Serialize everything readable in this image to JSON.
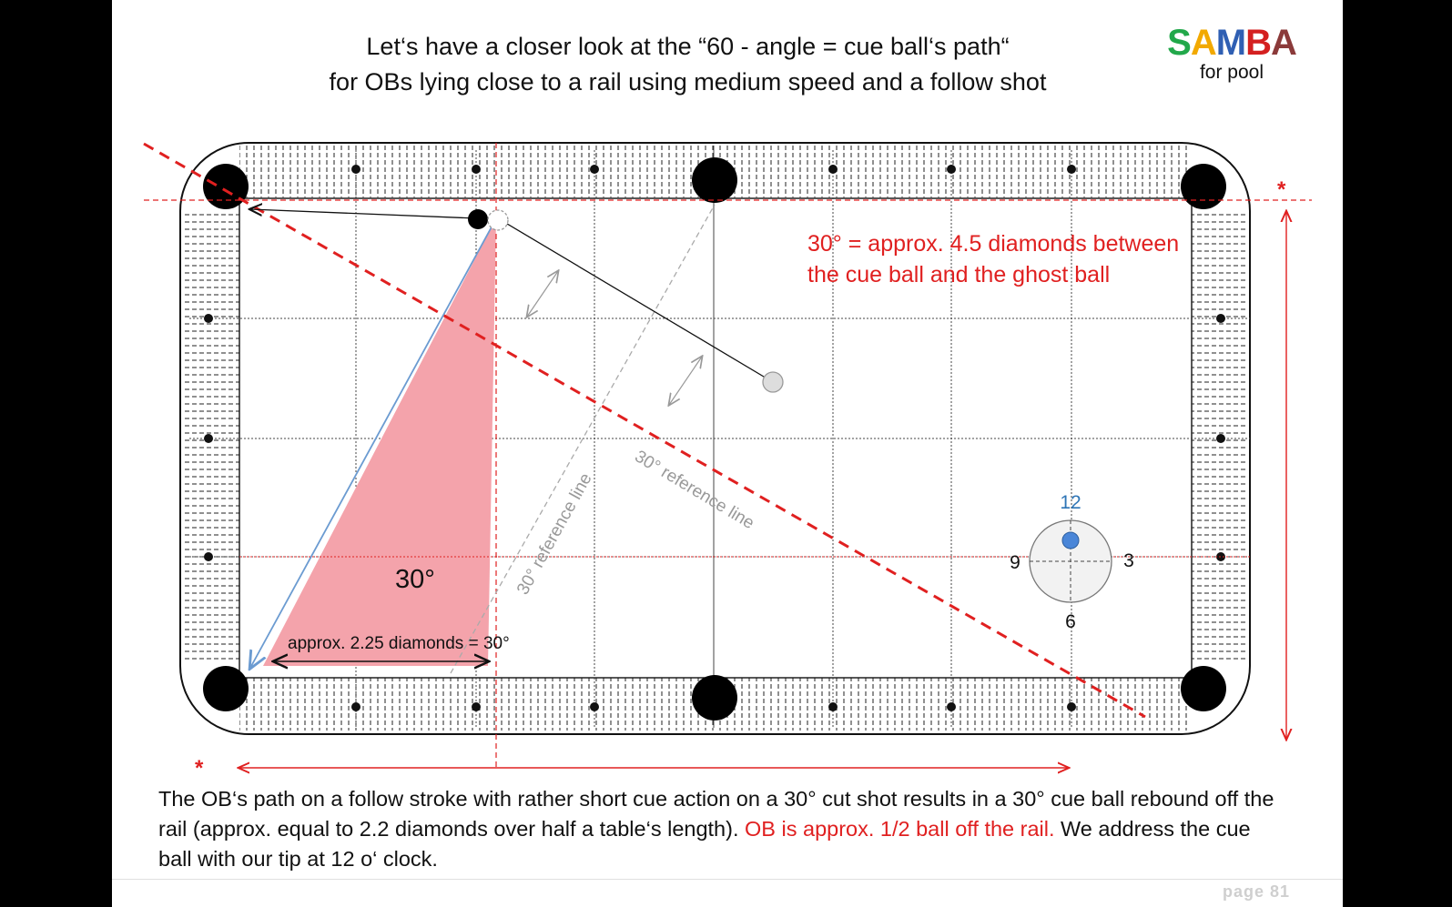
{
  "header": {
    "title_line1": "Let‘s have a closer look at the “60 - angle = cue ball‘s path“",
    "title_line2": "for OBs lying close to a rail using medium speed and a follow shot"
  },
  "logo": {
    "letters": [
      {
        "char": "S",
        "color": "#22a84a"
      },
      {
        "char": "A",
        "color": "#f2a900"
      },
      {
        "char": "M",
        "color": "#2f5fb3"
      },
      {
        "char": "B",
        "color": "#d42020"
      },
      {
        "char": "A",
        "color": "#8b3a3a"
      }
    ],
    "subtitle": "for pool"
  },
  "diagram": {
    "red_note_line1": "30° = approx. 4.5 diamonds between",
    "red_note_line2": "the cue ball and the ghost ball",
    "angle_label": "30°",
    "approx_label": "approx. 2.25 diamonds = 30°",
    "ref_line_label_1": "30° reference line",
    "ref_line_label_2": "30° reference line",
    "asterisk": "*",
    "clock": {
      "top": "12",
      "right": "3",
      "bottom": "6",
      "left": "9"
    },
    "colors": {
      "red": "#e02020",
      "triangle": "#f4a3ab",
      "aim_line": "#6b9bd1",
      "clock_dot": "#4a86d8",
      "clock_top_label": "#2e75b6",
      "ref_line": "#aaaaaa"
    }
  },
  "footer": {
    "text_black": "The OB‘s path on a follow stroke with rather short cue action on a 30° cut shot results in a 30° cue ball rebound off the rail (approx. equal to 2.2 diamonds over half a table‘s length).  ",
    "text_red": "OB is approx. 1/2 ball off the rail.",
    "text_black2": "  We address the cue ball with our tip at 12 o‘ clock."
  },
  "page_number": "page 81"
}
